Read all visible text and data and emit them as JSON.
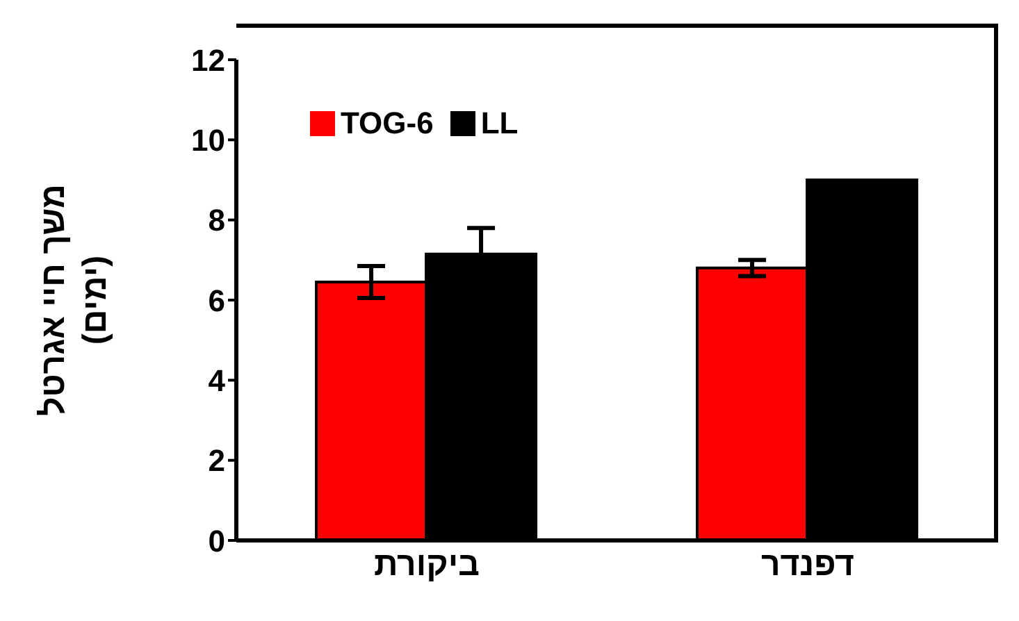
{
  "chart_data": {
    "type": "bar",
    "ylabel": "משך חיי אגרטל\n(ימים)",
    "categories": [
      "ביקורת",
      "דפנדר"
    ],
    "series": [
      {
        "name": "TOG-6",
        "color": "#ff0000",
        "values": [
          6.45,
          6.8
        ],
        "errors": [
          0.4,
          0.2
        ]
      },
      {
        "name": "LL",
        "color": "#000000",
        "values": [
          7.15,
          9.0
        ],
        "errors": [
          0.65,
          null
        ]
      }
    ],
    "ylim": [
      0,
      12
    ],
    "yticks": [
      0,
      2,
      4,
      6,
      8,
      10,
      12
    ],
    "grid": false,
    "legend": "top left"
  }
}
